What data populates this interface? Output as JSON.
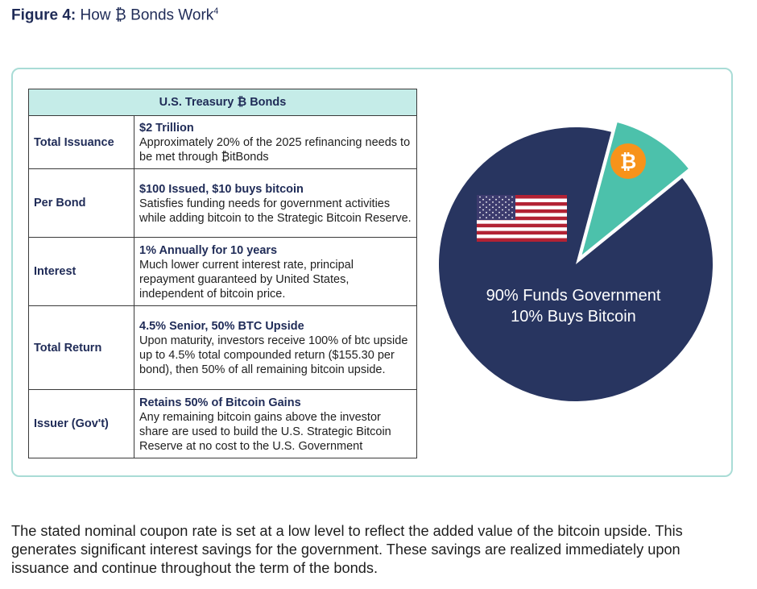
{
  "figure": {
    "label": "Figure 4:",
    "title": "How ₿ Bonds Work",
    "footnote": "4"
  },
  "table": {
    "header": "U.S. Treasury ₿ Bonds",
    "rows": [
      {
        "label": "Total Issuance",
        "head": "$2 Trillion",
        "desc": "Approximately 20% of the 2025 refinancing needs to be met through ₿itBonds"
      },
      {
        "label": "Per Bond",
        "head": "$100 Issued, $10 buys bitcoin",
        "desc": "Satisfies funding needs for government activities while adding bitcoin to the Strategic Bitcoin Reserve."
      },
      {
        "label": "Interest",
        "head": "1% Annually for 10 years",
        "desc": "Much lower current interest rate, principal repayment guaranteed by United States, independent of bitcoin price."
      },
      {
        "label": "Total Return",
        "head": "4.5% Senior, 50% BTC Upside",
        "desc": "Upon maturity, investors receive 100% of btc upside up to 4.5% total compounded return ($155.30 per bond), then 50% of all remaining bitcoin upside."
      },
      {
        "label": "Issuer (Gov't)",
        "head": "Retains 50% of Bitcoin Gains",
        "desc": "Any remaining bitcoin gains above the investor share are used to build the U.S. Strategic Bitcoin Reserve at no cost to the U.S. Government"
      }
    ]
  },
  "pie": {
    "line1": "90% Funds Government",
    "line2": "10% Buys Bitcoin",
    "government_share": 90,
    "bitcoin_share": 10,
    "government_color": "#283560",
    "bitcoin_color": "#4cc1ab",
    "coin_color": "#f7931a",
    "coin_symbol": "₿",
    "icons": [
      "us-flag-icon",
      "bitcoin-icon"
    ]
  },
  "caption": "The stated nominal coupon rate is set at a low level to reflect the added value of the bitcoin upside. This generates significant interest savings for the government. These savings are realized immediately upon issuance and continue throughout the term of the bonds."
}
